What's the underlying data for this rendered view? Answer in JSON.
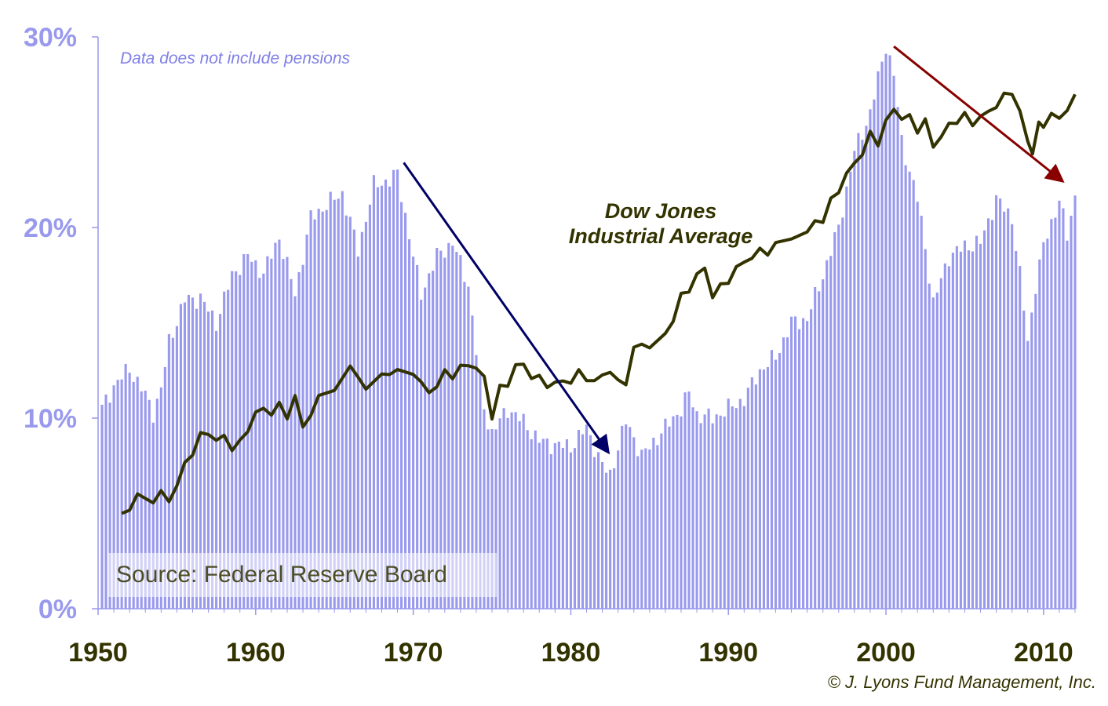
{
  "colors": {
    "bars": "#9999ee",
    "dow_line": "#333300",
    "arrow_down_1": "#000066",
    "arrow_down_2": "#880000",
    "axis": "#9999ee"
  },
  "annotations": {
    "note": "Data does not include pensions",
    "dow_label_line1": "Dow Jones",
    "dow_label_line2": "Industrial Average",
    "source": "Source: Federal Reserve Board",
    "credit": "© J. Lyons Fund Management, Inc."
  },
  "chart_data": {
    "type": "bar",
    "title": "",
    "xlabel": "",
    "ylabel": "",
    "xlim": [
      1950,
      2012
    ],
    "ylim": [
      0,
      30
    ],
    "y_ticks": [
      "0%",
      "10%",
      "20%",
      "30%"
    ],
    "y_tick_values": [
      0,
      10,
      20,
      30
    ],
    "x_ticks": [
      "1950",
      "1960",
      "1970",
      "1980",
      "1990",
      "2000",
      "2010"
    ],
    "x_tick_values": [
      1950,
      1960,
      1970,
      1980,
      1990,
      2000,
      2010
    ],
    "grid": false,
    "series": [
      {
        "kind": "bar",
        "step": 0.25,
        "start": 1950.25,
        "keypoints": [
          [
            1950.25,
            10.5
          ],
          [
            1951.0,
            11.7
          ],
          [
            1952.0,
            12.6
          ],
          [
            1953.0,
            11.2
          ],
          [
            1953.5,
            10.3
          ],
          [
            1954.0,
            11.5
          ],
          [
            1954.5,
            14.0
          ],
          [
            1955.5,
            16.2
          ],
          [
            1956.5,
            16.3
          ],
          [
            1957.5,
            15.0
          ],
          [
            1958.5,
            17.5
          ],
          [
            1959.5,
            18.5
          ],
          [
            1960.5,
            17.6
          ],
          [
            1961.5,
            19.5
          ],
          [
            1962.5,
            16.5
          ],
          [
            1963.5,
            20.5
          ],
          [
            1964.5,
            21.2
          ],
          [
            1965.5,
            21.8
          ],
          [
            1966.5,
            18.8
          ],
          [
            1967.5,
            22.2
          ],
          [
            1968.5,
            22.5
          ],
          [
            1969.0,
            22.8
          ],
          [
            1970.0,
            18.5
          ],
          [
            1970.5,
            16.5
          ],
          [
            1971.5,
            18.5
          ],
          [
            1972.5,
            19.2
          ],
          [
            1973.5,
            17.0
          ],
          [
            1974.0,
            13.5
          ],
          [
            1974.5,
            10.5
          ],
          [
            1975.0,
            9.2
          ],
          [
            1976.0,
            10.5
          ],
          [
            1977.0,
            9.8
          ],
          [
            1978.0,
            8.8
          ],
          [
            1979.0,
            8.6
          ],
          [
            1980.0,
            8.5
          ],
          [
            1981.0,
            9.5
          ],
          [
            1982.0,
            7.5
          ],
          [
            1982.5,
            7.0
          ],
          [
            1983.0,
            8.5
          ],
          [
            1983.5,
            9.8
          ],
          [
            1984.0,
            9.0
          ],
          [
            1984.5,
            8.0
          ],
          [
            1985.0,
            8.5
          ],
          [
            1986.0,
            9.5
          ],
          [
            1987.0,
            10.5
          ],
          [
            1987.5,
            11.3
          ],
          [
            1988.0,
            10.2
          ],
          [
            1989.0,
            10.0
          ],
          [
            1990.0,
            10.5
          ],
          [
            1991.0,
            11.0
          ],
          [
            1992.0,
            12.5
          ],
          [
            1993.0,
            13.2
          ],
          [
            1994.0,
            15.0
          ],
          [
            1995.0,
            15.2
          ],
          [
            1996.0,
            17.5
          ],
          [
            1997.0,
            20.0
          ],
          [
            1998.0,
            24.0
          ],
          [
            1999.0,
            26.0
          ],
          [
            2000.0,
            29.6
          ],
          [
            2000.5,
            28.0
          ],
          [
            2001.0,
            24.5
          ],
          [
            2002.0,
            21.5
          ],
          [
            2002.5,
            19.0
          ],
          [
            2003.0,
            16.0
          ],
          [
            2004.0,
            18.5
          ],
          [
            2005.0,
            19.0
          ],
          [
            2006.0,
            19.2
          ],
          [
            2007.0,
            21.5
          ],
          [
            2008.0,
            20.5
          ],
          [
            2008.5,
            17.5
          ],
          [
            2009.0,
            14.0
          ],
          [
            2009.5,
            17.0
          ],
          [
            2010.0,
            19.0
          ],
          [
            2011.0,
            21.5
          ],
          [
            2011.5,
            19.5
          ],
          [
            2012.0,
            21.7
          ]
        ]
      },
      {
        "name": "Dow Jones Industrial Average",
        "kind": "line",
        "points": [
          [
            1951.5,
            5.0
          ],
          [
            1952.0,
            5.3
          ],
          [
            1952.5,
            5.8
          ],
          [
            1953.5,
            5.8
          ],
          [
            1954.0,
            6.0
          ],
          [
            1954.5,
            5.7
          ],
          [
            1955.0,
            6.5
          ],
          [
            1955.5,
            7.5
          ],
          [
            1956.0,
            8.3
          ],
          [
            1956.5,
            9.0
          ],
          [
            1957.0,
            9.3
          ],
          [
            1957.5,
            8.8
          ],
          [
            1958.0,
            9.0
          ],
          [
            1958.5,
            8.5
          ],
          [
            1959.0,
            8.6
          ],
          [
            1959.5,
            9.5
          ],
          [
            1960.0,
            10.2
          ],
          [
            1960.5,
            10.5
          ],
          [
            1961.0,
            10.3
          ],
          [
            1961.5,
            10.6
          ],
          [
            1962.0,
            10.2
          ],
          [
            1962.5,
            11.0
          ],
          [
            1963.0,
            9.6
          ],
          [
            1963.5,
            10.2
          ],
          [
            1964.0,
            11.0
          ],
          [
            1965.0,
            11.7
          ],
          [
            1966.0,
            12.5
          ],
          [
            1966.5,
            12.3
          ],
          [
            1967.0,
            11.5
          ],
          [
            1968.0,
            12.2
          ],
          [
            1968.5,
            12.5
          ],
          [
            1969.0,
            12.3
          ],
          [
            1970.0,
            12.5
          ],
          [
            1970.5,
            11.8
          ],
          [
            1971.0,
            11.3
          ],
          [
            1971.5,
            11.8
          ],
          [
            1972.0,
            12.3
          ],
          [
            1972.5,
            12.3
          ],
          [
            1973.0,
            12.6
          ],
          [
            1973.5,
            12.8
          ],
          [
            1974.0,
            12.7
          ],
          [
            1974.5,
            12.0
          ],
          [
            1975.0,
            10.2
          ],
          [
            1975.5,
            11.5
          ],
          [
            1976.0,
            11.8
          ],
          [
            1976.5,
            12.8
          ],
          [
            1977.0,
            12.7
          ],
          [
            1977.5,
            12.3
          ],
          [
            1978.0,
            12.0
          ],
          [
            1978.5,
            11.8
          ],
          [
            1979.0,
            11.8
          ],
          [
            1979.5,
            11.9
          ],
          [
            1980.0,
            12.0
          ],
          [
            1980.5,
            12.3
          ],
          [
            1981.0,
            12.2
          ],
          [
            1981.5,
            11.8
          ],
          [
            1982.0,
            12.3
          ],
          [
            1982.5,
            12.5
          ],
          [
            1983.0,
            11.8
          ],
          [
            1983.5,
            12.0
          ],
          [
            1984.0,
            13.5
          ],
          [
            1984.5,
            14.0
          ],
          [
            1985.0,
            13.7
          ],
          [
            1986.0,
            14.3
          ],
          [
            1986.5,
            15.3
          ],
          [
            1987.0,
            16.3
          ],
          [
            1987.5,
            16.8
          ],
          [
            1988.0,
            17.5
          ],
          [
            1988.5,
            17.8
          ],
          [
            1989.0,
            16.5
          ],
          [
            1989.5,
            16.8
          ],
          [
            1990.0,
            17.3
          ],
          [
            1990.5,
            17.8
          ],
          [
            1991.0,
            18.2
          ],
          [
            1991.5,
            18.5
          ],
          [
            1992.0,
            18.7
          ],
          [
            1992.5,
            18.8
          ],
          [
            1993.0,
            19.0
          ],
          [
            1994.0,
            19.5
          ],
          [
            1995.0,
            19.8
          ],
          [
            1995.5,
            20.2
          ],
          [
            1996.0,
            20.5
          ],
          [
            1996.5,
            21.3
          ],
          [
            1997.0,
            22.0
          ],
          [
            1997.5,
            22.8
          ],
          [
            1998.0,
            23.3
          ],
          [
            1998.5,
            24.0
          ],
          [
            1999.0,
            24.8
          ],
          [
            1999.5,
            24.5
          ],
          [
            2000.0,
            25.5
          ],
          [
            2000.5,
            26.2
          ],
          [
            2001.0,
            25.8
          ],
          [
            2001.5,
            25.7
          ],
          [
            2002.0,
            25.2
          ],
          [
            2002.5,
            25.5
          ],
          [
            2003.0,
            24.3
          ],
          [
            2003.5,
            24.8
          ],
          [
            2004.0,
            25.3
          ],
          [
            2004.5,
            25.7
          ],
          [
            2005.0,
            25.8
          ],
          [
            2005.5,
            25.5
          ],
          [
            2006.0,
            25.8
          ],
          [
            2006.5,
            26.0
          ],
          [
            2007.0,
            26.5
          ],
          [
            2007.5,
            26.8
          ],
          [
            2008.0,
            27.2
          ],
          [
            2008.5,
            26.0
          ],
          [
            2009.0,
            24.5
          ],
          [
            2009.3,
            24.0
          ],
          [
            2009.7,
            25.3
          ],
          [
            2010.0,
            25.5
          ],
          [
            2010.5,
            25.8
          ],
          [
            2011.0,
            25.8
          ],
          [
            2011.5,
            26.2
          ],
          [
            2012.0,
            26.8
          ]
        ]
      }
    ],
    "arrows": [
      {
        "color_key": "arrow_down_1",
        "from": [
          1969.4,
          23.4
        ],
        "to": [
          1982.3,
          8.3
        ]
      },
      {
        "color_key": "arrow_down_2",
        "from": [
          2000.5,
          29.5
        ],
        "to": [
          2011.1,
          22.5
        ]
      }
    ]
  }
}
